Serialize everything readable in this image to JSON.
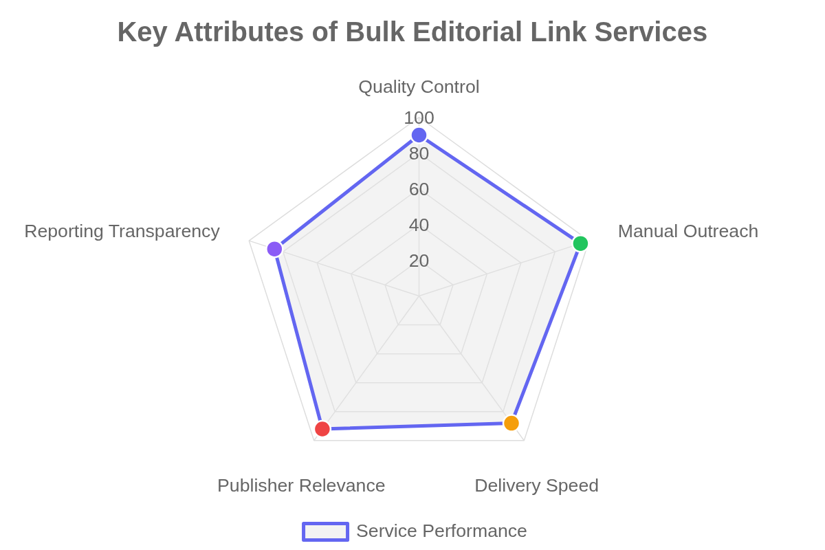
{
  "chart_data": {
    "type": "radar",
    "title": "Key Attributes of Bulk Editorial Link Services",
    "categories": [
      "Quality Control",
      "Manual Outreach",
      "Delivery Speed",
      "Publisher Relevance",
      "Reporting Transparency"
    ],
    "series": [
      {
        "name": "Service Performance",
        "color": "#6366f1",
        "colors": [
          "#6366f1",
          "#22c55e",
          "#f59e0b",
          "#ef4444",
          "#8b5cf6"
        ],
        "values": [
          90,
          95,
          88,
          92,
          85
        ]
      }
    ],
    "ylim": [
      0,
      100
    ],
    "yticks": [
      20,
      40,
      60,
      80,
      100
    ],
    "grid": true,
    "legend": "bottom",
    "marker": "circle"
  }
}
